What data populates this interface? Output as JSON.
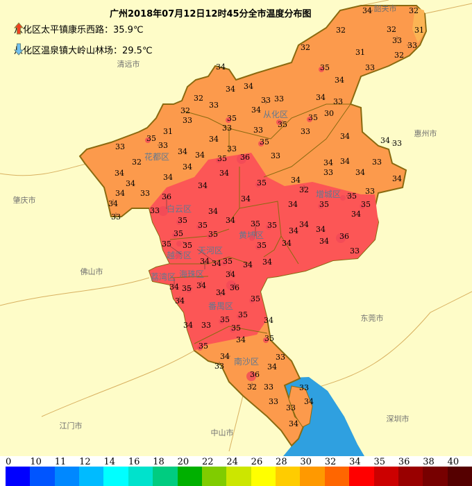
{
  "title": "广州2018年07月12日12时45分全市温度分布图",
  "extremes": {
    "max": {
      "label": "从化区太平镇康乐西路：35.9℃",
      "icon": "red-up-arrow-icon"
    },
    "min": {
      "label": "从化区温泉镇大岭山林场：29.5℃",
      "icon": "blue-down-arrow-icon"
    }
  },
  "districts": [
    "花都区",
    "从化区",
    "白云区",
    "增城区",
    "黄埔区",
    "天河区",
    "越秀区",
    "荔湾区",
    "海珠区",
    "番禺区",
    "南沙区"
  ],
  "neighbors": [
    "韶关市",
    "清远市",
    "肇庆市",
    "佛山市",
    "惠州市",
    "东莞市",
    "江门市",
    "中山市",
    "深圳市"
  ],
  "stations": [
    "34",
    "32",
    "32",
    "32",
    "33",
    "31",
    "33",
    "31",
    "32",
    "35",
    "33",
    "34",
    "32",
    "34",
    "34",
    "34",
    "32",
    "33",
    "32",
    "33",
    "35",
    "33",
    "34",
    "33",
    "33",
    "31",
    "35",
    "33",
    "33",
    "34",
    "33",
    "35",
    "33",
    "34",
    "34",
    "32",
    "35",
    "36",
    "33",
    "34",
    "34",
    "34",
    "34",
    "34",
    "35",
    "34",
    "34",
    "33",
    "34",
    "33",
    "33",
    "36",
    "34",
    "34",
    "33",
    "35",
    "30",
    "35",
    "33",
    "34",
    "34",
    "33",
    "34",
    "34",
    "33",
    "33",
    "34",
    "34",
    "34",
    "32",
    "33",
    "35",
    "34",
    "35",
    "35",
    "34",
    "35",
    "34",
    "35",
    "35",
    "34",
    "34",
    "34",
    "35",
    "35",
    "35",
    "35",
    "34",
    "34",
    "36",
    "34",
    "35",
    "35",
    "33",
    "34",
    "35",
    "34",
    "34",
    "34",
    "34",
    "34",
    "34",
    "35",
    "36",
    "34",
    "34",
    "35",
    "35",
    "35",
    "34",
    "34",
    "33",
    "35",
    "35",
    "34",
    "35",
    "34",
    "33",
    "33",
    "34",
    "36",
    "32",
    "33",
    "33",
    "33",
    "34",
    "33",
    "34",
    "32"
  ],
  "colors": {
    "background": "#fefcc8",
    "warm": "#fc9a4c",
    "hot": "#fc5656",
    "mild": "#fcb454",
    "water": "#2fa0e0",
    "border": "#8a6a10"
  },
  "legend": {
    "labels": [
      "0",
      "10",
      "11",
      "12",
      "14",
      "16",
      "18",
      "20",
      "22",
      "24",
      "26",
      "28",
      "30",
      "32",
      "34",
      "35",
      "36",
      "38",
      "40"
    ],
    "colors": [
      "#0000ff",
      "#0055ff",
      "#0088ff",
      "#00bbff",
      "#00ffff",
      "#00e2cc",
      "#00cc80",
      "#00b000",
      "#80cc00",
      "#cce600",
      "#ffff00",
      "#ffcc00",
      "#ff9900",
      "#ff6600",
      "#ff0000",
      "#cc0000",
      "#990000",
      "#770000",
      "#550000"
    ]
  }
}
